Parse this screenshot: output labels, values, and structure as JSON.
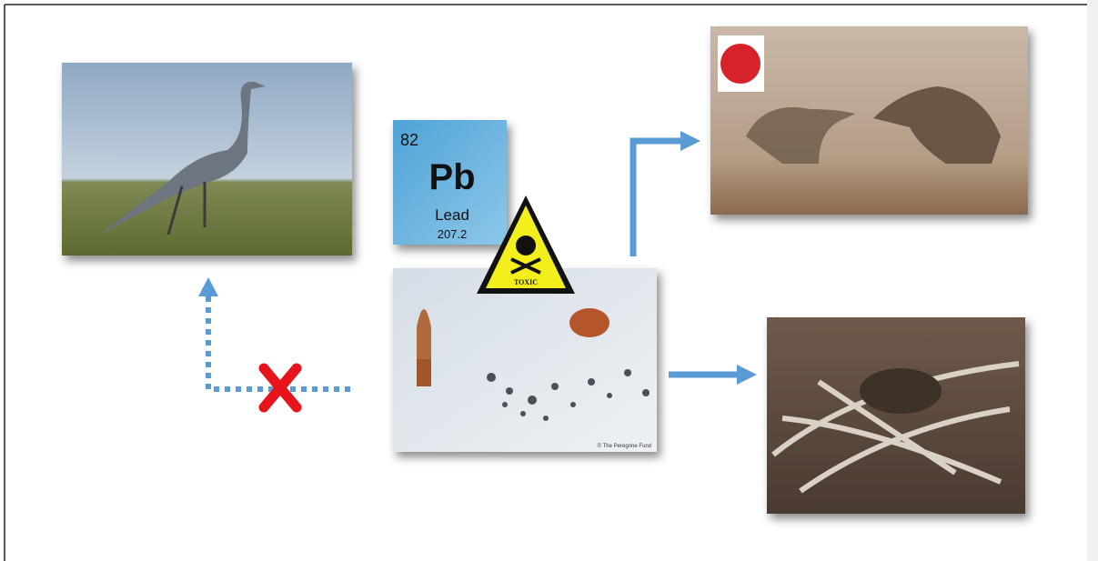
{
  "element_tile": {
    "atomic_number": 82,
    "symbol": "Pb",
    "name": "Lead",
    "atomic_mass": 207.2
  },
  "warning_sign": {
    "label": "TOXIC"
  },
  "bullet_photo": {
    "credit": "© The Peregrine Fund"
  }
}
